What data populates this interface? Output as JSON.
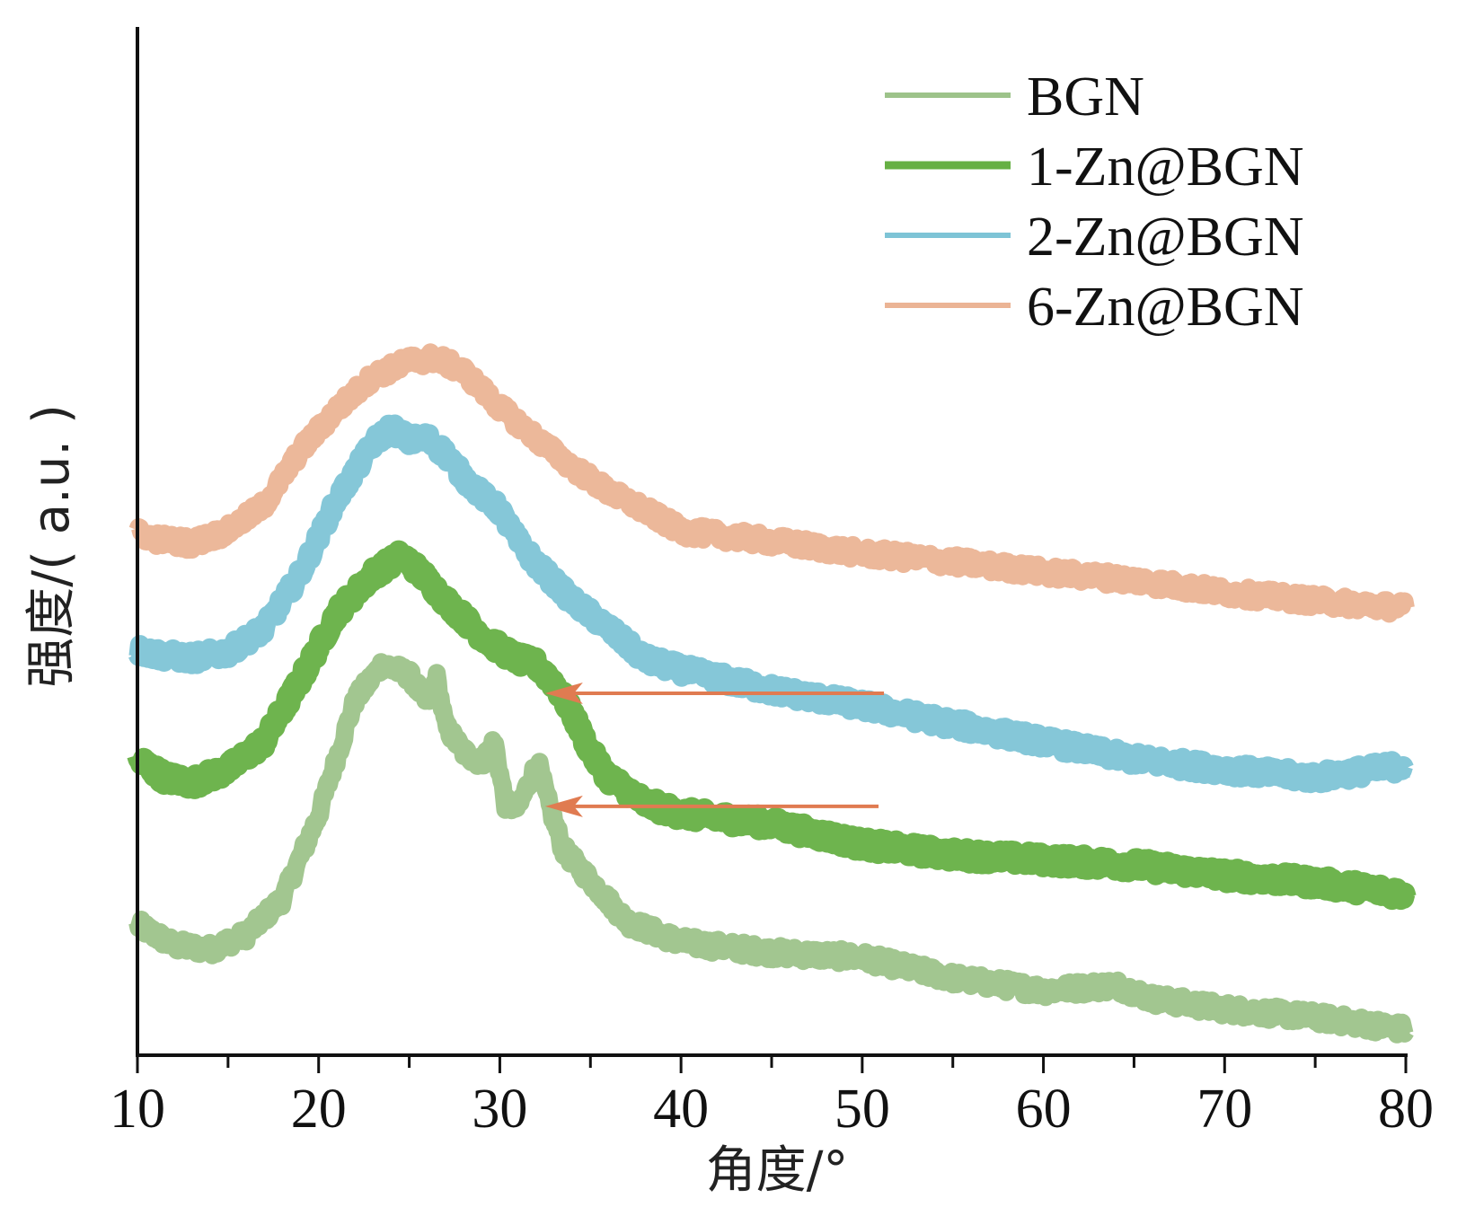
{
  "chart_data": {
    "type": "line",
    "xlabel": "角度/°",
    "ylabel": "强度/( a.u. )",
    "xlim": [
      10,
      80
    ],
    "xticks": [
      10,
      20,
      30,
      40,
      50,
      60,
      70,
      80
    ],
    "ylim": [
      0,
      1
    ],
    "y_ticks_shown": false,
    "grid": false,
    "legend_position": "top-right",
    "series": [
      {
        "name": "BGN",
        "color": "#9dc38a",
        "x": [
          10,
          12,
          14,
          16,
          18,
          20,
          22,
          23.5,
          25,
          26,
          26.5,
          27,
          28,
          29,
          29.7,
          30.3,
          31,
          31.6,
          32.1,
          32.6,
          33.5,
          35,
          37,
          40,
          45,
          50,
          55,
          60,
          64,
          66,
          70,
          75,
          80
        ],
        "values": [
          0.127,
          0.107,
          0.103,
          0.117,
          0.152,
          0.234,
          0.345,
          0.38,
          0.37,
          0.342,
          0.368,
          0.32,
          0.295,
          0.285,
          0.305,
          0.245,
          0.24,
          0.265,
          0.285,
          0.25,
          0.2,
          0.17,
          0.13,
          0.11,
          0.1,
          0.095,
          0.075,
          0.063,
          0.068,
          0.055,
          0.045,
          0.037,
          0.025
        ]
      },
      {
        "name": "1-Zn@BGN",
        "color": "#66b044",
        "x": [
          10,
          11.5,
          13,
          15,
          17,
          19,
          21,
          23,
          24.5,
          25,
          26,
          27,
          28,
          29,
          30,
          31,
          32,
          33,
          34,
          35,
          36,
          37,
          38,
          40,
          45,
          50,
          55,
          60,
          65,
          70,
          75,
          80
        ],
        "values": [
          0.288,
          0.27,
          0.265,
          0.278,
          0.305,
          0.365,
          0.43,
          0.468,
          0.485,
          0.48,
          0.462,
          0.442,
          0.425,
          0.408,
          0.395,
          0.385,
          0.38,
          0.362,
          0.332,
          0.295,
          0.27,
          0.258,
          0.245,
          0.235,
          0.225,
          0.205,
          0.195,
          0.19,
          0.185,
          0.175,
          0.168,
          0.157
        ]
      },
      {
        "name": "2-Zn@BGN",
        "color": "#7ec4d6",
        "x": [
          10,
          11,
          13,
          15,
          17,
          19,
          21,
          23,
          24,
          25,
          26,
          27,
          28,
          29,
          30,
          31,
          32,
          34,
          36,
          38,
          40,
          45,
          50,
          55,
          60,
          65,
          70,
          75,
          80
        ],
        "values": [
          0.394,
          0.39,
          0.386,
          0.392,
          0.415,
          0.468,
          0.54,
          0.595,
          0.61,
          0.598,
          0.6,
          0.585,
          0.562,
          0.545,
          0.53,
          0.5,
          0.478,
          0.442,
          0.415,
          0.385,
          0.375,
          0.355,
          0.34,
          0.322,
          0.305,
          0.288,
          0.278,
          0.27,
          0.282
        ]
      },
      {
        "name": "6-Zn@BGN",
        "color": "#ebb495",
        "x": [
          10,
          11,
          13,
          15,
          17,
          19,
          21,
          23,
          25,
          26.5,
          28,
          30,
          32,
          34,
          36,
          38,
          40,
          45,
          50,
          55,
          60,
          65,
          70,
          75,
          80
        ],
        "values": [
          0.508,
          0.502,
          0.498,
          0.51,
          0.535,
          0.588,
          0.628,
          0.66,
          0.675,
          0.678,
          0.665,
          0.63,
          0.6,
          0.572,
          0.548,
          0.53,
          0.51,
          0.5,
          0.488,
          0.48,
          0.47,
          0.462,
          0.45,
          0.442,
          0.435
        ]
      }
    ],
    "annotations": [
      {
        "type": "arrow",
        "color": "#e07b51",
        "from": {
          "x": 51.2,
          "y": 0.352
        },
        "to": {
          "x": 32.5,
          "y": 0.352
        }
      },
      {
        "type": "arrow",
        "color": "#e07b51",
        "from": {
          "x": 50.9,
          "y": 0.242
        },
        "to": {
          "x": 32.5,
          "y": 0.242
        }
      }
    ]
  }
}
